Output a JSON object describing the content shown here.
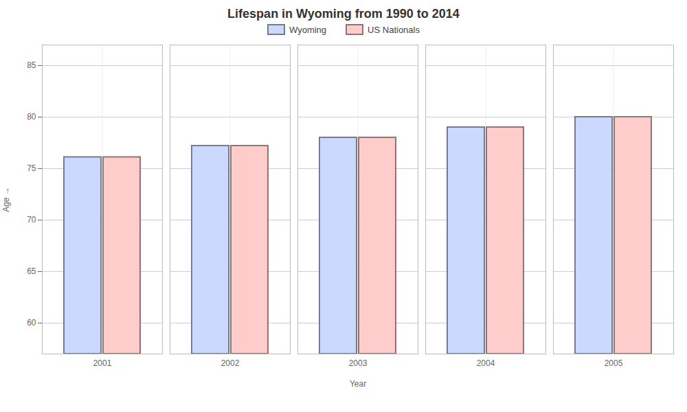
{
  "chart_data": {
    "type": "bar",
    "title": "Lifespan in Wyoming from 1990 to 2014",
    "x_label": "Year",
    "y_label": "Age",
    "categories": [
      "2001",
      "2002",
      "2003",
      "2004",
      "2005"
    ],
    "series": [
      {
        "name": "Wyoming",
        "color": "#ccd9ff",
        "values": [
          76.1,
          77.2,
          78.0,
          79.0,
          80.0
        ]
      },
      {
        "name": "US Nationals",
        "color": "#ffcccc",
        "values": [
          76.1,
          77.2,
          78.0,
          79.0,
          80.0
        ]
      }
    ],
    "ylim": [
      57,
      87
    ],
    "yticks": [
      60,
      65,
      70,
      75,
      80,
      85
    ],
    "grid": true,
    "legend": "top"
  }
}
